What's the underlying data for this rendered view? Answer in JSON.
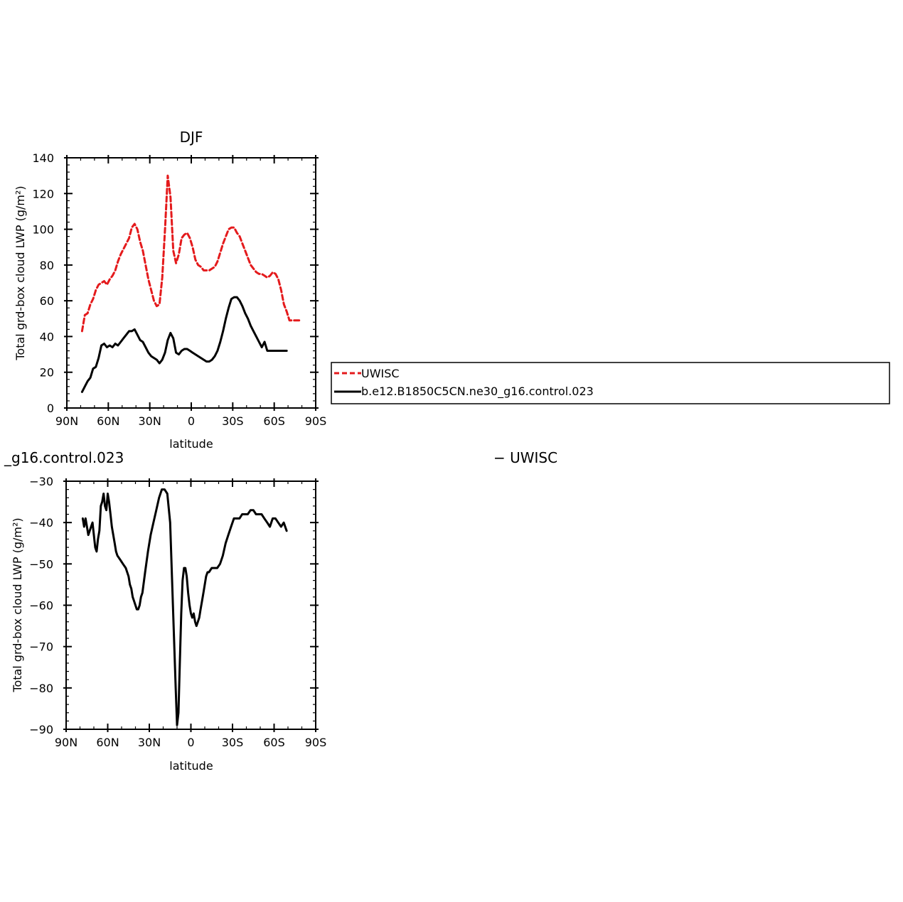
{
  "chart_data": [
    {
      "type": "line",
      "title": "DJF",
      "xlabel": "latitude",
      "ylabel": "Total grd-box cloud LWP (g/m²)",
      "xlim": [
        90,
        -90
      ],
      "ylim": [
        0,
        140
      ],
      "xticks": [
        90,
        60,
        30,
        0,
        -30,
        -60,
        -90
      ],
      "xtick_labels": [
        "90N",
        "60N",
        "30N",
        "0",
        "30S",
        "60S",
        "90S"
      ],
      "yticks": [
        0,
        20,
        40,
        60,
        80,
        100,
        120,
        140
      ],
      "ytick_labels": [
        "0",
        "20",
        "40",
        "60",
        "80",
        "100",
        "120",
        "140"
      ],
      "legend_position": "right of plot",
      "series": [
        {
          "name": "UWISC",
          "color": "#e41a1c",
          "dash": "dashed",
          "x": [
            79,
            77,
            75,
            73,
            71,
            69,
            67,
            65,
            63,
            61,
            59,
            57,
            55,
            53,
            51,
            49,
            47,
            45,
            43,
            41,
            39,
            37,
            35,
            33,
            31,
            29,
            27,
            25,
            23,
            21,
            19,
            17,
            15,
            13,
            11,
            9,
            7,
            5,
            3,
            1,
            -1,
            -3,
            -5,
            -7,
            -9,
            -11,
            -13,
            -15,
            -17,
            -19,
            -21,
            -23,
            -25,
            -27,
            -29,
            -31,
            -33,
            -35,
            -37,
            -39,
            -41,
            -43,
            -45,
            -47,
            -49,
            -51,
            -53,
            -55,
            -57,
            -59,
            -61,
            -63,
            -65,
            -67,
            -69,
            -71,
            -73,
            -75,
            -77,
            -79
          ],
          "values": [
            43,
            52,
            53,
            58,
            61,
            66,
            69,
            70,
            71,
            69,
            72,
            74,
            77,
            82,
            86,
            89,
            92,
            95,
            101,
            103,
            100,
            93,
            88,
            80,
            72,
            66,
            60,
            57,
            58,
            73,
            100,
            130,
            118,
            88,
            81,
            86,
            95,
            97,
            98,
            95,
            90,
            83,
            80,
            79,
            77,
            77,
            77,
            78,
            79,
            82,
            87,
            92,
            96,
            100,
            101,
            101,
            98,
            96,
            92,
            88,
            84,
            80,
            78,
            76,
            75,
            75,
            74,
            73,
            74,
            76,
            75,
            72,
            66,
            58,
            54,
            49,
            49,
            49,
            49,
            49
          ]
        },
        {
          "name": "b.e12.B1850C5CN.ne30_g16.control.023",
          "color": "#000000",
          "dash": "solid",
          "x": [
            79,
            77,
            75,
            73,
            71,
            69,
            67,
            65,
            63,
            61,
            59,
            57,
            55,
            53,
            51,
            49,
            47,
            45,
            43,
            41,
            39,
            37,
            35,
            33,
            31,
            29,
            27,
            25,
            23,
            21,
            19,
            17,
            15,
            13,
            11,
            9,
            7,
            5,
            3,
            1,
            -1,
            -3,
            -5,
            -7,
            -9,
            -11,
            -13,
            -15,
            -17,
            -19,
            -21,
            -23,
            -25,
            -27,
            -29,
            -31,
            -33,
            -35,
            -37,
            -39,
            -41,
            -43,
            -45,
            -47,
            -49,
            -51,
            -53,
            -55,
            -57,
            -59,
            -61,
            -63,
            -65,
            -67,
            -69
          ],
          "values": [
            9,
            12,
            15,
            17,
            22,
            23,
            28,
            35,
            36,
            34,
            35,
            34,
            36,
            35,
            37,
            39,
            41,
            43,
            43,
            44,
            41,
            38,
            37,
            34,
            31,
            29,
            28,
            27,
            25,
            27,
            31,
            38,
            42,
            39,
            31,
            30,
            32,
            33,
            33,
            32,
            31,
            30,
            29,
            28,
            27,
            26,
            26,
            27,
            29,
            32,
            37,
            43,
            50,
            56,
            61,
            62,
            62,
            60,
            57,
            53,
            50,
            46,
            43,
            40,
            37,
            34,
            37,
            32,
            32,
            32,
            32,
            32,
            32,
            32,
            32
          ]
        }
      ]
    },
    {
      "type": "line",
      "title": "",
      "xlabel": "latitude",
      "ylabel": "Total grd-box cloud LWP (g/m²)",
      "xlim": [
        90,
        -90
      ],
      "ylim": [
        -90,
        -30
      ],
      "xticks": [
        90,
        60,
        30,
        0,
        -30,
        -60,
        -90
      ],
      "xtick_labels": [
        "90N",
        "60N",
        "30N",
        "0",
        "30S",
        "60S",
        "90S"
      ],
      "yticks": [
        -90,
        -80,
        -70,
        -60,
        -50,
        -40,
        -30
      ],
      "ytick_labels": [
        "−90",
        "−80",
        "−70",
        "−60",
        "−50",
        "−40",
        "−30"
      ],
      "series": [
        {
          "name": "",
          "color": "#000000",
          "dash": "solid",
          "x": [
            78,
            77,
            76,
            75,
            74,
            73,
            72,
            71,
            70,
            69,
            68,
            67,
            66,
            65,
            64,
            63,
            62,
            61,
            60,
            59,
            58,
            57,
            56,
            55,
            54,
            53,
            51,
            49,
            47,
            45,
            44,
            43,
            42,
            41,
            40,
            39,
            38,
            37,
            36,
            35,
            33,
            31,
            29,
            27,
            25,
            23,
            21,
            19,
            17,
            15,
            13,
            11,
            10,
            9,
            8,
            7,
            6,
            5,
            4,
            3,
            2,
            1,
            0,
            -1,
            -2,
            -3,
            -4,
            -5,
            -6,
            -7,
            -8,
            -9,
            -10,
            -11,
            -12,
            -13,
            -15,
            -17,
            -19,
            -21,
            -23,
            -25,
            -27,
            -29,
            -31,
            -33,
            -35,
            -37,
            -39,
            -41,
            -43,
            -45,
            -47,
            -49,
            -51,
            -53,
            -55,
            -57,
            -59,
            -61,
            -63,
            -65,
            -67,
            -68,
            -69
          ],
          "values": [
            -39,
            -41,
            -39,
            -41,
            -43,
            -42,
            -41,
            -40,
            -43,
            -46,
            -47,
            -44,
            -42,
            -36,
            -35,
            -33,
            -36,
            -37,
            -33,
            -35,
            -38,
            -41,
            -43,
            -45,
            -47,
            -48,
            -49,
            -50,
            -51,
            -53,
            -55,
            -56,
            -58,
            -59,
            -60,
            -61,
            -61,
            -60,
            -58,
            -57,
            -52,
            -47,
            -43,
            -40,
            -37,
            -34,
            -32,
            -32,
            -33,
            -40,
            -60,
            -80,
            -89,
            -86,
            -74,
            -62,
            -54,
            -51,
            -51,
            -53,
            -57,
            -60,
            -62,
            -63,
            -62,
            -64,
            -65,
            -64,
            -63,
            -61,
            -59,
            -57,
            -55,
            -53,
            -52,
            -52,
            -51,
            -51,
            -51,
            -50,
            -48,
            -45,
            -43,
            -41,
            -39,
            -39,
            -39,
            -38,
            -38,
            -38,
            -37,
            -37,
            -38,
            -38,
            -38,
            -39,
            -40,
            -41,
            -39,
            -39,
            -40,
            -41,
            -40,
            -41,
            -42
          ]
        }
      ]
    }
  ],
  "legend": {
    "items": [
      {
        "label": "UWISC",
        "color": "#e41a1c",
        "dash": "dashed"
      },
      {
        "label": "b.e12.B1850C5CN.ne30_g16.control.023",
        "color": "#000000",
        "dash": "solid"
      }
    ]
  },
  "panel2_title_left": "_g16.control.023",
  "panel2_title_right": "− UWISC"
}
